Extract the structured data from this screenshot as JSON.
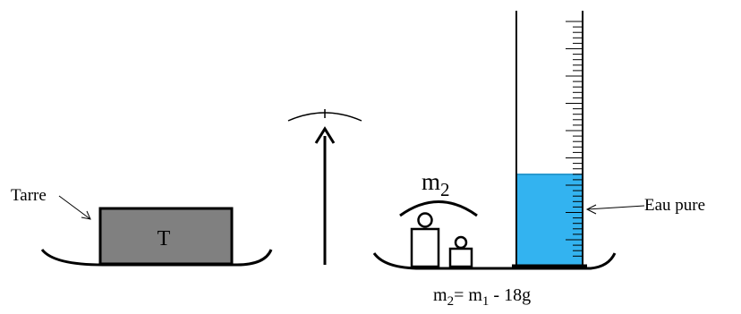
{
  "labels": {
    "tare": "Tarre",
    "tare_block": "T",
    "mass_label": "m",
    "mass_label_sub": "2",
    "water": "Eau pure"
  },
  "formula": {
    "lhs": "m",
    "lhs_sub": "2",
    "eq": "= m",
    "rhs_sub": "1",
    "rest": " - 18g"
  },
  "colors": {
    "water": "#33b3f0",
    "tare_block": "#808080",
    "ink": "#000000"
  }
}
